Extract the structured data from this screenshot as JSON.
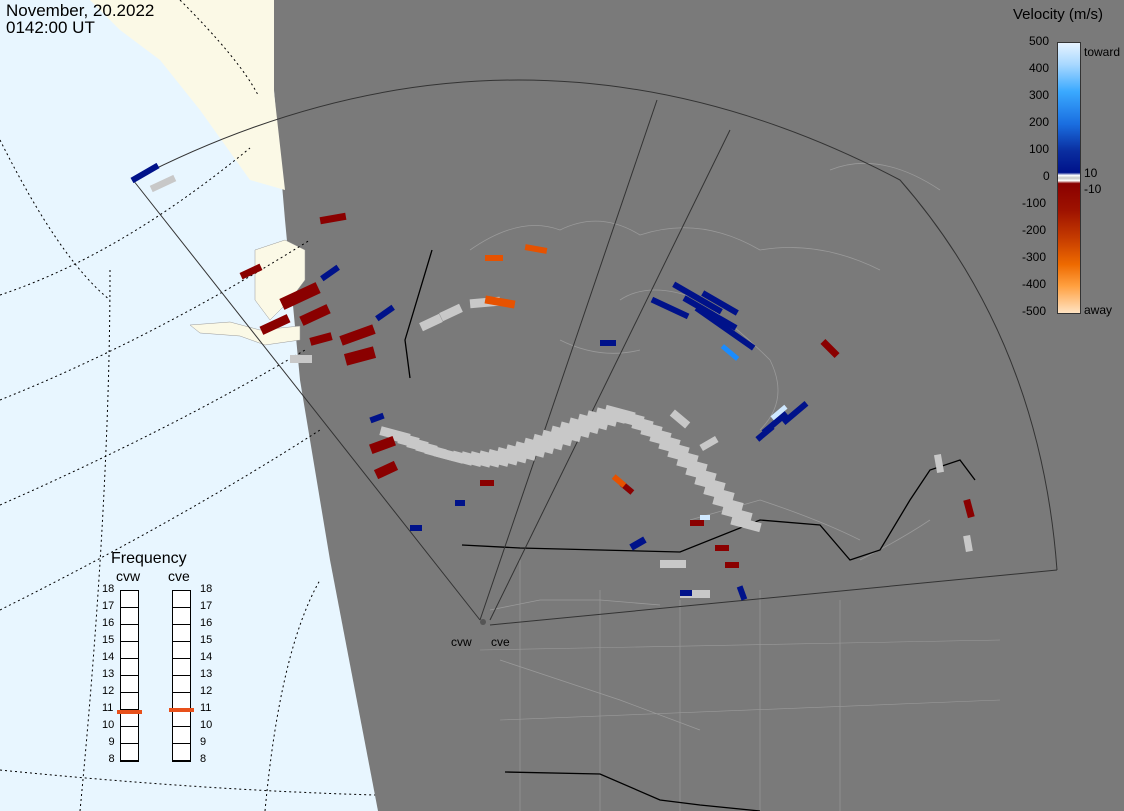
{
  "header": {
    "date": "November, 20.2022",
    "time": "0142:00 UT"
  },
  "velocity_legend": {
    "title": "Velocity (m/s)",
    "ticks": [
      "500",
      "400",
      "300",
      "200",
      "100",
      "0",
      "-100",
      "-200",
      "-300",
      "-400",
      "-500"
    ],
    "label_toward": "toward",
    "label_away": "away",
    "label_plus10": "10",
    "label_minus10": "-10",
    "colors": {
      "toward_max": "#cfe8ff",
      "toward_mid": "#1a8cff",
      "toward_low": "#00128a",
      "away_low": "#8a0000",
      "away_mid": "#e65200",
      "away_max": "#ffd9b0",
      "ground_scatter": "#c8c8c8"
    }
  },
  "frequency_panel": {
    "title": "Frequency",
    "radars": [
      {
        "name": "cvw",
        "value_mhz": 10.9
      },
      {
        "name": "cve",
        "value_mhz": 11.0
      }
    ],
    "scale": [
      "18",
      "17",
      "16",
      "15",
      "14",
      "13",
      "12",
      "11",
      "10",
      "9",
      "8"
    ],
    "marker_color": "#e8501a"
  },
  "map": {
    "site_labels": [
      "cvw",
      "cve"
    ],
    "land_color": "#7a7a7a",
    "ocean_color": "#e8f6ff",
    "daylight_land_color": "#fbf9e6"
  }
}
